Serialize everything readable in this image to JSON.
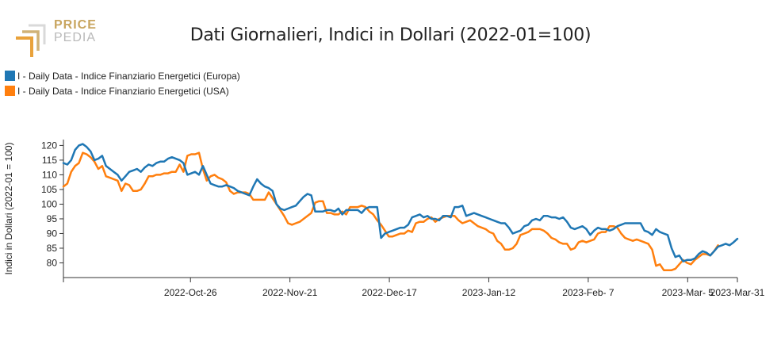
{
  "logo": {
    "line1": "PRICE",
    "line2": "PEDIA",
    "accent": "#c8a55f",
    "secondary": "#b9b9b9"
  },
  "chart_data": {
    "type": "line",
    "title": "Dati Giornalieri, Indici in Dollari (2022-01=100)",
    "ylabel": "Indici in Dollari (2022-01 = 100)",
    "xlabel": "",
    "ylim": [
      75,
      122
    ],
    "yticks": [
      80,
      85,
      90,
      95,
      100,
      105,
      110,
      115,
      120
    ],
    "xticks": [
      {
        "label": "2022-Oct-26",
        "index": 23
      },
      {
        "label": "2022-Nov-21",
        "index": 41
      },
      {
        "label": "2022-Dec-17",
        "index": 59
      },
      {
        "label": "2023-Jan-12",
        "index": 77
      },
      {
        "label": "2023-Feb- 7",
        "index": 95
      },
      {
        "label": "2023-Mar- 5",
        "index": 113
      },
      {
        "label": "2023-Mar-31",
        "index": 122
      }
    ],
    "legend_position": "top-left",
    "grid": false,
    "series": [
      {
        "name": "I - Daily Data - Indice Finanziario Energetici (Europa)",
        "color": "#1f77b4",
        "values": [
          114,
          113.5,
          115,
          118.5,
          120,
          120.5,
          119.5,
          118,
          115,
          115.5,
          116.5,
          113,
          112,
          111,
          110,
          108,
          109.5,
          111,
          111.5,
          112,
          111,
          112.5,
          113.5,
          113,
          114,
          114.5,
          114.5,
          115.5,
          116,
          115.5,
          115,
          114,
          110,
          110.5,
          111,
          110,
          113,
          110,
          107,
          106.5,
          106,
          106,
          106.5,
          106,
          105.5,
          104.5,
          104,
          103.5,
          103,
          106,
          108.5,
          107,
          106,
          105.5,
          104.5,
          100,
          98.5,
          98,
          98.5,
          99,
          99.5,
          101,
          102.5,
          103.5,
          103,
          97.5,
          97.5,
          97.5,
          98,
          98,
          97.5,
          98.5,
          96.5,
          98,
          98,
          98,
          98,
          97,
          98.5,
          99,
          99,
          99,
          88.5,
          90,
          90.5,
          91,
          91.5,
          92,
          92,
          93,
          95.5,
          96,
          96.5,
          95.5,
          96,
          95,
          95,
          94.5,
          96,
          96,
          95.5,
          99,
          99,
          99.5,
          96,
          96.5,
          97,
          96.5,
          96,
          95.5,
          95,
          94.5,
          94,
          93.5,
          93.5,
          92,
          90,
          90.5,
          91,
          92.5,
          93,
          94.5,
          95,
          94.5,
          96,
          96,
          95.5,
          95.5,
          95,
          95.5,
          94,
          92,
          91.5,
          92,
          92.5,
          91.5,
          89.5,
          91,
          92,
          91.5,
          91.5,
          91,
          91.5,
          92.5,
          93,
          93.5,
          93.5,
          93.5,
          93.5,
          93.5,
          91,
          90.5,
          89.5,
          91.5,
          90.5,
          90,
          89.5,
          85,
          82,
          82.5,
          80.5,
          81,
          81,
          81.5,
          83,
          84,
          83.5,
          82.5,
          84,
          85.5,
          86,
          86.5,
          86,
          87,
          88.2
        ]
      },
      {
        "name": "I - Daily Data - Indice Finanziario Energetici (USA)",
        "color": "#ff7f0e",
        "values": [
          106,
          107,
          111,
          113,
          114,
          117.5,
          117,
          116,
          114.5,
          112,
          113,
          109.5,
          109,
          108.5,
          108,
          104.5,
          107,
          106.5,
          104.5,
          104.5,
          105,
          107,
          109.5,
          109.5,
          110,
          110,
          110.5,
          110.5,
          111,
          111,
          113.5,
          111,
          116.5,
          117,
          117,
          117.5,
          112,
          108,
          109.5,
          110,
          109,
          108.5,
          107.5,
          104.5,
          103.5,
          104,
          104,
          104,
          103.5,
          101.5,
          101.5,
          101.5,
          101.5,
          104,
          102,
          100,
          98,
          96,
          93.5,
          93,
          93.5,
          94,
          95,
          96,
          97,
          100.5,
          101,
          101,
          97,
          97,
          96.5,
          96.5,
          97.5,
          96.5,
          99,
          99,
          99,
          99.5,
          99,
          97.5,
          96.5,
          94.5,
          93,
          91,
          89,
          89,
          89.5,
          90,
          90,
          91,
          90.5,
          93.5,
          94,
          94,
          95,
          95.5,
          94,
          95,
          95.5,
          96,
          96,
          96,
          94.5,
          93.5,
          94,
          94.5,
          93.5,
          92.5,
          92,
          91.5,
          90.5,
          90,
          87.5,
          86.5,
          84.5,
          84.5,
          85,
          86.5,
          89.5,
          90,
          90.5,
          91.5,
          91.5,
          91.5,
          91,
          90,
          88.5,
          88,
          87,
          86.5,
          86.5,
          84.5,
          85,
          87,
          87.5,
          87,
          87.5,
          88,
          90,
          90.5,
          90.5,
          92.5,
          92.5,
          92,
          90,
          88.5,
          88,
          87.5,
          88,
          87.5,
          87,
          86.5,
          84.5,
          79,
          79.5,
          77.5,
          77.5,
          77.5,
          78,
          79.5,
          81,
          80,
          79.5,
          81,
          82,
          83,
          83,
          82.5,
          84,
          86
        ]
      }
    ]
  }
}
